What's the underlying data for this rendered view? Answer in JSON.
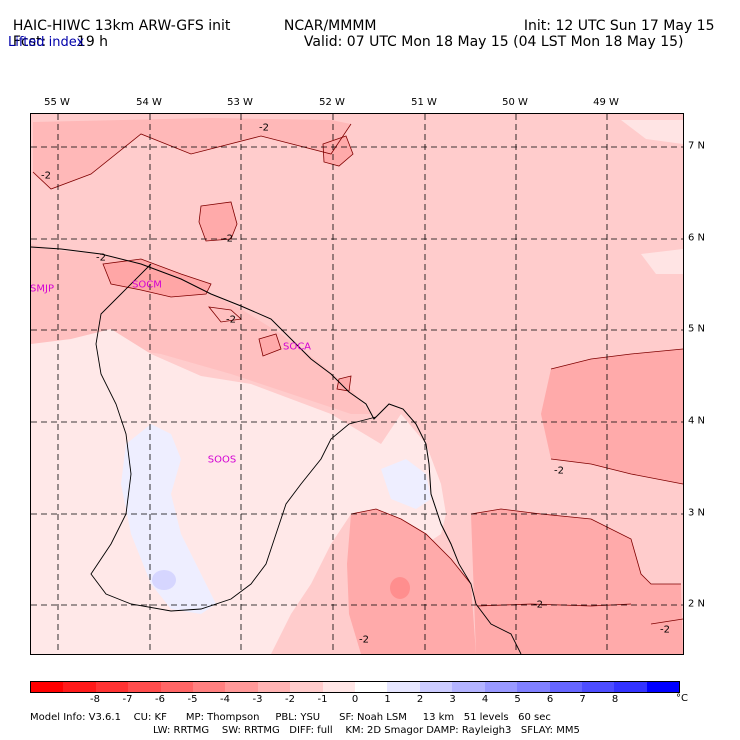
{
  "header": {
    "model": "HAIC-HIWC 13km ARW-GFS init",
    "org": "NCAR/MMMM",
    "init": "Init: 12 UTC Sun 17 May 15",
    "fcst_label": "Fcst:",
    "fcst_value": "19 h",
    "valid": "Valid: 07 UTC Mon 18 May 15 (04 LST Mon 18 May 15)",
    "field": "Lifted index"
  },
  "longitudes": [
    "55 W",
    "54 W",
    "53 W",
    "52 W",
    "51 W",
    "50 W",
    "49 W"
  ],
  "latitudes": [
    "7 N",
    "6 N",
    "5 N",
    "4 N",
    "3 N",
    "2 N"
  ],
  "stations": [
    "SMJP",
    "SOCM",
    "SOCA",
    "SOOS"
  ],
  "contour_label": "-2",
  "colorbar": {
    "colors": [
      "#ff0000",
      "#ff1a1a",
      "#ff3333",
      "#ff4d4d",
      "#ff6666",
      "#ff8080",
      "#ff9999",
      "#ffb3b3",
      "#ffcccc",
      "#ffe6e6",
      "#ffffff",
      "#e6e6ff",
      "#ccccff",
      "#b3b3ff",
      "#9999ff",
      "#8080ff",
      "#6666ff",
      "#4d4dff",
      "#3333ff",
      "#0000ff"
    ],
    "ticks": [
      "-8",
      "-7",
      "-6",
      "-5",
      "-4",
      "-3",
      "-2",
      "-1",
      "0",
      "1",
      "2",
      "3",
      "4",
      "5",
      "6",
      "7",
      "8"
    ],
    "unit": "°C"
  },
  "footer": {
    "line1": "Model Info: V3.6.1    CU: KF      MP: Thompson     PBL: YSU      SF: Noah LSM     13 km   51 levels   60 sec",
    "line2": "LW: RRTMG    SW: RRTMG   DIFF: full    KM: 2D Smagor DAMP: Rayleigh3   SFLAY: MM5"
  }
}
